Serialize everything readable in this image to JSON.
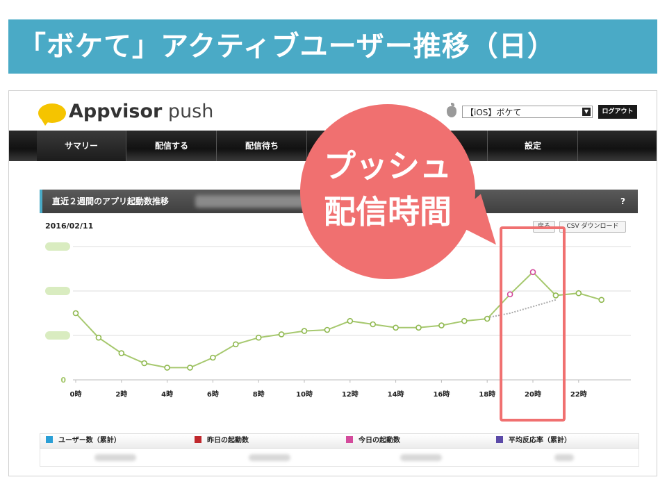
{
  "slide": {
    "title": "「ボケて」アクティブユーザー推移（日）"
  },
  "header": {
    "logo_bold": "Appvisor",
    "logo_light": " push",
    "app_selector": "【iOS】ボケて",
    "logout_label": "ログアウト"
  },
  "nav": [
    "サマリー",
    "配信する",
    "配信待ち",
    "",
    "",
    "設定",
    ""
  ],
  "panel": {
    "title": "直近２週間のアプリ起動数推移",
    "help": "?"
  },
  "chart_meta": {
    "date": "2016/02/11",
    "btn_back": "戻る",
    "btn_csv": "CSV ダウンロード"
  },
  "legend": [
    {
      "label": "ユーザー数（累計）",
      "color": "#2a9fd6"
    },
    {
      "label": "昨日の起動数",
      "color": "#c0282d"
    },
    {
      "label": "今日の起動数",
      "color": "#d44b9c"
    },
    {
      "label": "平均反応率（累計）",
      "color": "#5b4aa8"
    }
  ],
  "callout": {
    "line1": "プッシュ",
    "line2": "配信時間"
  },
  "colors": {
    "accent": "#4aaac6",
    "line": "#a6c86e",
    "highlight": "#f07070",
    "today_point": "#d44b9c"
  },
  "chart_data": {
    "type": "line",
    "x": [
      0,
      1,
      2,
      3,
      4,
      5,
      6,
      7,
      8,
      9,
      10,
      11,
      12,
      13,
      14,
      15,
      16,
      17,
      18,
      19,
      20,
      21,
      22,
      23
    ],
    "tick_labels": [
      "0時",
      "2時",
      "4時",
      "6時",
      "8時",
      "10時",
      "12時",
      "14時",
      "16時",
      "18時",
      "20時",
      "22時"
    ],
    "tick_positions": [
      0,
      2,
      4,
      6,
      8,
      10,
      12,
      14,
      16,
      18,
      20,
      22
    ],
    "series": [
      {
        "values": [
          3.0,
          1.9,
          1.2,
          0.75,
          0.55,
          0.55,
          1.0,
          1.6,
          1.9,
          2.05,
          2.2,
          2.25,
          2.65,
          2.5,
          2.35,
          2.35,
          2.45,
          2.65,
          2.75,
          3.85,
          4.85,
          3.8,
          3.9,
          3.6
        ]
      },
      {
        "values": [
          null,
          null,
          null,
          null,
          null,
          null,
          null,
          null,
          null,
          null,
          null,
          null,
          null,
          null,
          null,
          null,
          null,
          null,
          2.8,
          3.0,
          3.3,
          3.6,
          null,
          null
        ]
      }
    ],
    "highlight_points": [
      19,
      20
    ],
    "highlight_range": [
      19,
      20
    ],
    "y_zero_label": "0",
    "ylim": [
      0,
      6
    ],
    "grid": true
  }
}
